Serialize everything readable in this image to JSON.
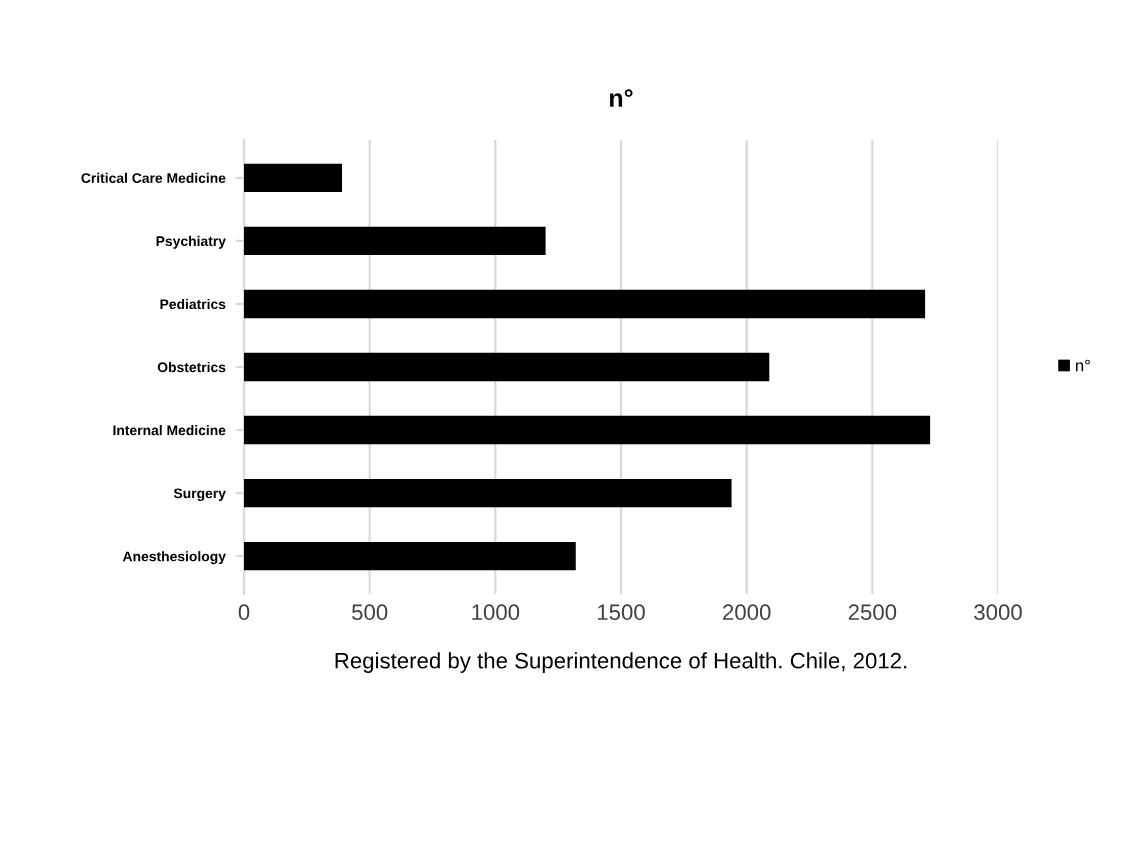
{
  "chart_data": {
    "type": "bar",
    "orientation": "horizontal",
    "title": "n°",
    "xlabel": "Registered by the Superintendence of Health. Chile, 2012.",
    "categories": [
      "Critical Care Medicine",
      "Psychiatry",
      "Pediatrics",
      "Obstetrics",
      "Internal Medicine",
      "Surgery",
      "Anesthesiology"
    ],
    "series": [
      {
        "name": "n°",
        "color": "#000000",
        "values": [
          390,
          1200,
          2710,
          2090,
          2730,
          1940,
          1320
        ]
      }
    ],
    "xlim": [
      0,
      3000
    ],
    "xticks": [
      0,
      500,
      1000,
      1500,
      2000,
      2500,
      3000
    ],
    "grid": "x",
    "legend": "right"
  }
}
